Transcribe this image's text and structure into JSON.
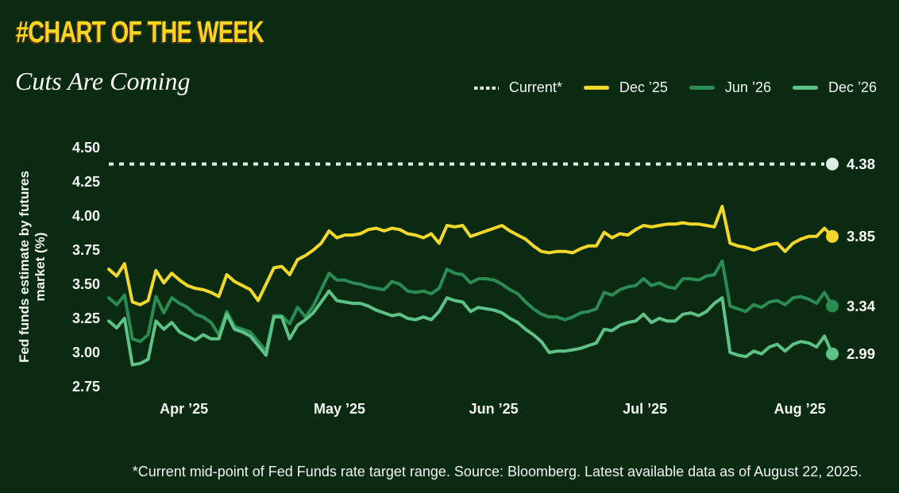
{
  "page": {
    "background": "#0a2a11"
  },
  "header": {
    "kicker": "#CHART OF THE WEEK",
    "title": "Cuts Are Coming"
  },
  "legend": {
    "position": "top-right",
    "items": [
      {
        "label": "Current*",
        "color": "#dcefe2",
        "style": "dotted"
      },
      {
        "label": "Dec ’25",
        "color": "#f3d829",
        "style": "solid"
      },
      {
        "label": "Jun ’26",
        "color": "#2a8c52",
        "style": "solid"
      },
      {
        "label": "Dec ’26",
        "color": "#5dc285",
        "style": "solid"
      }
    ]
  },
  "chart_data": {
    "type": "line",
    "title": "Cuts Are Coming",
    "ylabel": "Fed funds estimate by futures market (%)",
    "ylabel_lines": [
      "Fed funds estimate by futures",
      "market (%)"
    ],
    "ylim": [
      2.75,
      4.5
    ],
    "yticks": [
      "4.50",
      "4.25",
      "4.00",
      "3.75",
      "3.50",
      "3.25",
      "3.00",
      "2.75"
    ],
    "xticks": [
      {
        "label": "Apr ’25",
        "pos": 0.105
      },
      {
        "label": "May ’25",
        "pos": 0.318
      },
      {
        "label": "Jun ’25",
        "pos": 0.529
      },
      {
        "label": "Jul ’25",
        "pos": 0.736
      },
      {
        "label": "Aug ’25",
        "pos": 0.948
      }
    ],
    "grid": false,
    "legend_position": "top-right",
    "series": [
      {
        "name": "Current*",
        "color": "#dcefe2",
        "dash": true,
        "constant": 4.38,
        "end_label": "4.38"
      },
      {
        "name": "Dec ’25",
        "color": "#f3d829",
        "dash": false,
        "end_label": "3.85",
        "values": [
          3.61,
          3.56,
          3.65,
          3.37,
          3.35,
          3.38,
          3.6,
          3.51,
          3.58,
          3.53,
          3.49,
          3.47,
          3.46,
          3.44,
          3.41,
          3.57,
          3.52,
          3.49,
          3.46,
          3.38,
          3.5,
          3.62,
          3.63,
          3.57,
          3.68,
          3.71,
          3.75,
          3.8,
          3.89,
          3.84,
          3.86,
          3.86,
          3.87,
          3.9,
          3.91,
          3.89,
          3.91,
          3.9,
          3.87,
          3.86,
          3.84,
          3.87,
          3.8,
          3.93,
          3.92,
          3.93,
          3.85,
          3.87,
          3.89,
          3.91,
          3.93,
          3.89,
          3.86,
          3.83,
          3.78,
          3.74,
          3.73,
          3.74,
          3.74,
          3.73,
          3.76,
          3.78,
          3.78,
          3.88,
          3.84,
          3.87,
          3.86,
          3.9,
          3.93,
          3.92,
          3.93,
          3.94,
          3.94,
          3.95,
          3.94,
          3.94,
          3.93,
          3.92,
          4.07,
          3.8,
          3.78,
          3.77,
          3.75,
          3.77,
          3.79,
          3.8,
          3.74,
          3.8,
          3.83,
          3.85,
          3.85,
          3.91,
          3.85
        ]
      },
      {
        "name": "Jun ’26",
        "color": "#2a8c52",
        "dash": false,
        "end_label": "3.34",
        "values": [
          3.4,
          3.35,
          3.42,
          3.1,
          3.08,
          3.13,
          3.41,
          3.29,
          3.4,
          3.36,
          3.33,
          3.28,
          3.26,
          3.22,
          3.13,
          3.3,
          3.19,
          3.17,
          3.15,
          3.08,
          3.01,
          3.27,
          3.27,
          3.21,
          3.33,
          3.26,
          3.34,
          3.46,
          3.58,
          3.53,
          3.53,
          3.51,
          3.5,
          3.48,
          3.47,
          3.46,
          3.52,
          3.5,
          3.45,
          3.44,
          3.45,
          3.43,
          3.47,
          3.61,
          3.58,
          3.57,
          3.51,
          3.54,
          3.54,
          3.53,
          3.5,
          3.46,
          3.43,
          3.37,
          3.32,
          3.28,
          3.26,
          3.26,
          3.24,
          3.26,
          3.29,
          3.3,
          3.32,
          3.44,
          3.42,
          3.46,
          3.48,
          3.49,
          3.54,
          3.49,
          3.51,
          3.48,
          3.47,
          3.54,
          3.54,
          3.53,
          3.56,
          3.57,
          3.67,
          3.34,
          3.32,
          3.3,
          3.35,
          3.33,
          3.37,
          3.38,
          3.35,
          3.4,
          3.41,
          3.39,
          3.36,
          3.44,
          3.34
        ]
      },
      {
        "name": "Dec ’26",
        "color": "#5dc285",
        "dash": false,
        "end_label": "2.99",
        "values": [
          3.23,
          3.18,
          3.25,
          2.91,
          2.92,
          2.95,
          3.23,
          3.17,
          3.22,
          3.15,
          3.12,
          3.09,
          3.13,
          3.1,
          3.1,
          3.28,
          3.17,
          3.15,
          3.12,
          3.05,
          2.98,
          3.26,
          3.26,
          3.1,
          3.2,
          3.24,
          3.29,
          3.37,
          3.45,
          3.38,
          3.37,
          3.36,
          3.36,
          3.34,
          3.31,
          3.29,
          3.27,
          3.28,
          3.25,
          3.24,
          3.26,
          3.24,
          3.3,
          3.4,
          3.38,
          3.37,
          3.3,
          3.33,
          3.32,
          3.31,
          3.29,
          3.25,
          3.22,
          3.17,
          3.13,
          3.08,
          3.0,
          3.01,
          3.01,
          3.02,
          3.03,
          3.05,
          3.07,
          3.17,
          3.16,
          3.2,
          3.22,
          3.23,
          3.28,
          3.22,
          3.25,
          3.23,
          3.23,
          3.28,
          3.29,
          3.27,
          3.3,
          3.36,
          3.4,
          3.0,
          2.98,
          2.97,
          3.01,
          2.99,
          3.04,
          3.06,
          3.01,
          3.06,
          3.08,
          3.07,
          3.04,
          3.12,
          2.99
        ]
      }
    ]
  },
  "footer": {
    "note": "*Current mid-point of Fed Funds rate target range. Source: Bloomberg. Latest available data as of August 22, 2025."
  }
}
